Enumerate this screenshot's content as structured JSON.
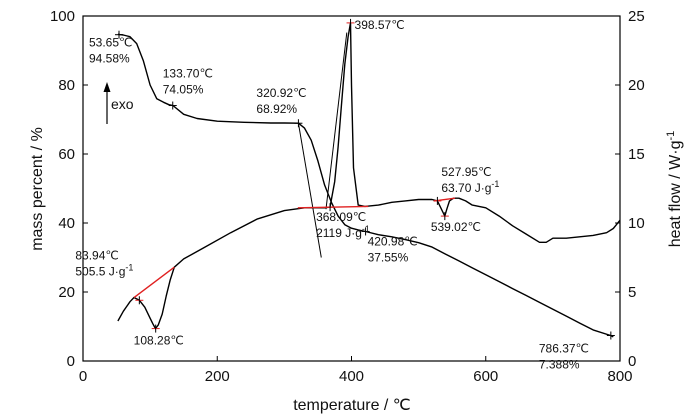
{
  "chart_data": {
    "type": "line",
    "xlabel": "temperature / ℃",
    "ylabel_left": "mass percent / %",
    "ylabel_right": "heat flow / W·g",
    "ylabel_right_sup": "-1",
    "xlim": [
      0,
      800
    ],
    "ylim_left": [
      0,
      100
    ],
    "ylim_right": [
      0,
      25
    ],
    "x_ticks": [
      "0",
      "200",
      "400",
      "600",
      "800"
    ],
    "y_left_ticks": [
      "0",
      "20",
      "40",
      "60",
      "80",
      "100"
    ],
    "y_right_ticks": [
      "0",
      "5",
      "10",
      "15",
      "20",
      "25"
    ],
    "grid": false,
    "legend": "none",
    "colors": {
      "curve": "#000000",
      "baseline": "#e02020"
    },
    "exo_label": "exo",
    "series": [
      {
        "axis": "left",
        "x": [
          52,
          55,
          60,
          70,
          80,
          90,
          100,
          110,
          120,
          128,
          134,
          150,
          170,
          200,
          240,
          280,
          300,
          321,
          330,
          340,
          350,
          360,
          370,
          380,
          390,
          400,
          410,
          421,
          440,
          460,
          480,
          500,
          520,
          540,
          560,
          580,
          600,
          620,
          640,
          660,
          680,
          700,
          720,
          740,
          760,
          786,
          790
        ],
        "y": [
          94.7,
          94.6,
          94.5,
          94.0,
          92.0,
          87.0,
          80.0,
          76.0,
          75.0,
          74.3,
          74.05,
          71.5,
          70.3,
          69.5,
          69.2,
          69.0,
          69.0,
          68.92,
          67.5,
          64.0,
          58.0,
          51.0,
          46.0,
          42.0,
          39.5,
          38.5,
          38.0,
          37.55,
          36.6,
          36.0,
          35.2,
          34.3,
          33.0,
          31.0,
          29.0,
          27.0,
          25.0,
          23.0,
          21.0,
          19.0,
          17.0,
          15.0,
          13.0,
          11.0,
          9.0,
          7.388,
          7.0
        ]
      },
      {
        "axis": "right",
        "x": [
          52,
          60,
          70,
          76,
          84,
          92,
          100,
          104,
          108,
          112,
          118,
          124,
          130,
          136,
          150,
          180,
          220,
          260,
          300,
          330,
          350,
          360,
          368,
          375,
          380,
          385,
          390,
          395,
          398.57,
          400,
          403,
          410,
          420,
          440,
          460,
          480,
          500,
          520,
          528,
          532,
          536,
          539,
          542,
          546,
          552,
          560,
          570,
          580,
          600,
          620,
          640,
          660,
          680,
          690,
          700,
          720,
          740,
          760,
          780,
          790,
          795,
          800
        ],
        "y": [
          2.9,
          3.6,
          4.3,
          4.6,
          4.4,
          3.9,
          3.1,
          2.7,
          2.35,
          2.6,
          3.4,
          4.7,
          5.9,
          6.8,
          7.4,
          8.2,
          9.3,
          10.3,
          10.9,
          11.1,
          11.1,
          11.1,
          11.15,
          13.0,
          15.5,
          18.5,
          21.5,
          23.5,
          24.5,
          20.0,
          14.0,
          11.3,
          11.2,
          11.3,
          11.5,
          11.6,
          11.7,
          11.7,
          11.6,
          11.2,
          10.8,
          10.5,
          11.0,
          11.6,
          11.8,
          11.8,
          11.6,
          11.3,
          11.1,
          10.5,
          9.8,
          9.2,
          8.6,
          8.6,
          8.9,
          8.9,
          9.0,
          9.1,
          9.3,
          9.6,
          9.9,
          10.2
        ]
      }
    ],
    "annotations": [
      {
        "lines": [
          "53.65℃",
          "94.58%"
        ],
        "x": 53.65,
        "y": 94.58,
        "axis": "left"
      },
      {
        "lines": [
          "133.70℃",
          "74.05%"
        ],
        "x": 133.7,
        "y": 74.05,
        "axis": "left"
      },
      {
        "lines": [
          "320.92℃",
          "68.92%"
        ],
        "x": 320.92,
        "y": 68.92,
        "axis": "left"
      },
      {
        "lines": [
          "398.57℃"
        ],
        "x": 398.57,
        "y": 24.5,
        "axis": "right"
      },
      {
        "lines": [
          "368.09℃",
          "2119 J·g"
        ],
        "sup": "-1",
        "x": 368.09,
        "y": 11.15,
        "axis": "right"
      },
      {
        "lines": [
          "420.98℃",
          "37.55%"
        ],
        "x": 420.98,
        "y": 37.55,
        "axis": "left"
      },
      {
        "lines": [
          "527.95℃",
          "63.70 J·g"
        ],
        "sup": "-1",
        "x": 527.95,
        "y": 11.6,
        "axis": "right"
      },
      {
        "lines": [
          "539.02℃"
        ],
        "x": 539.02,
        "y": 10.5,
        "axis": "right"
      },
      {
        "lines": [
          "83.94℃",
          "505.5 J·g"
        ],
        "sup": "-1",
        "x": 83.94,
        "y": 4.4,
        "axis": "right"
      },
      {
        "lines": [
          "108.28℃"
        ],
        "x": 108.28,
        "y": 2.35,
        "axis": "right"
      },
      {
        "lines": [
          "786.37℃",
          "7.388%"
        ],
        "x": 786.37,
        "y": 7.388,
        "axis": "left"
      }
    ]
  }
}
